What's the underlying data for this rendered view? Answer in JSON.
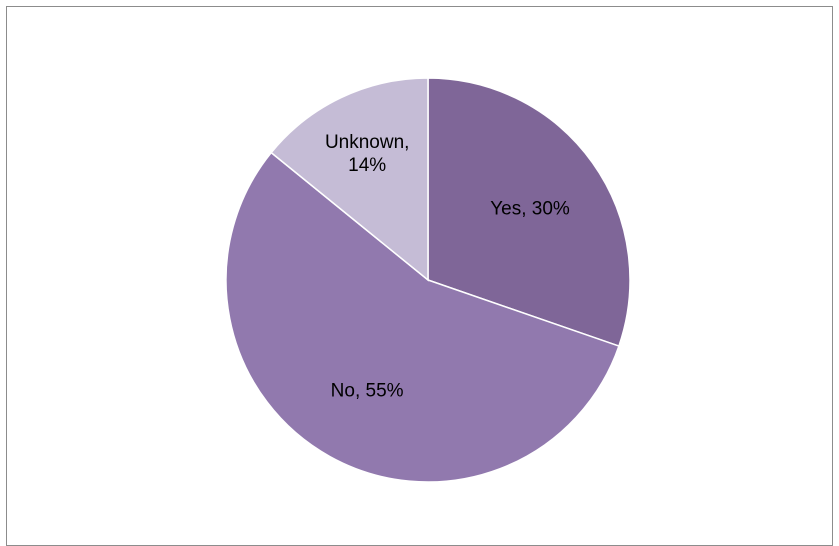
{
  "chart_data": {
    "type": "pie",
    "title": "",
    "slices": [
      {
        "label": "Yes",
        "value": 30,
        "label_text": "Yes, 30%",
        "color": "#7f6698"
      },
      {
        "label": "No",
        "value": 55,
        "label_text": "No, 55%",
        "color": "#9179ae"
      },
      {
        "label": "Unknown",
        "value": 14,
        "label_text": "Unknown, 14%",
        "label_lines": [
          "Unknown,",
          "14%"
        ],
        "color": "#c5bcd6"
      }
    ],
    "legend": "none",
    "start_angle": "12 o'clock",
    "direction": "clockwise"
  }
}
